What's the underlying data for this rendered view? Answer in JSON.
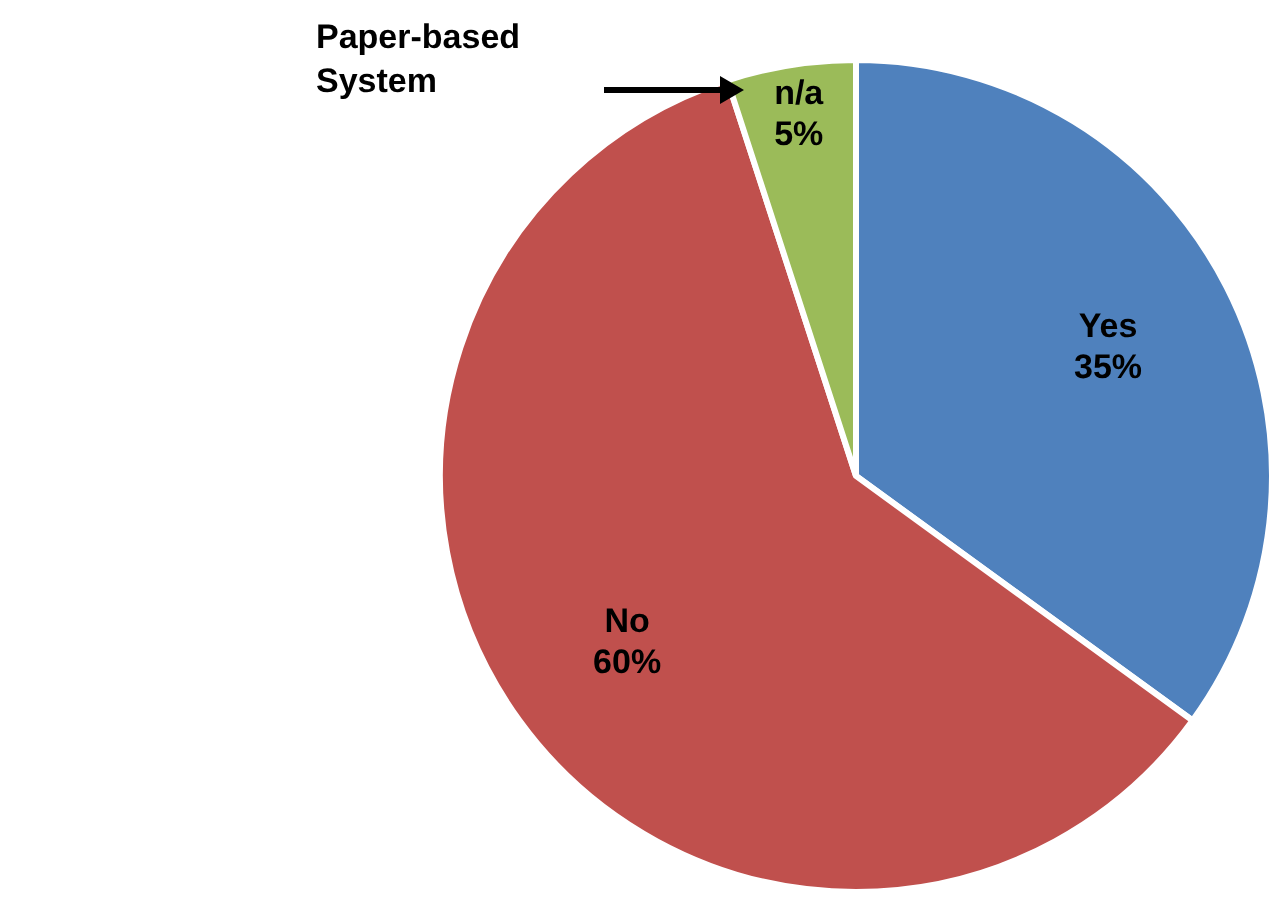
{
  "chart_data": {
    "type": "pie",
    "categories": [
      "Yes",
      "No",
      "n/a"
    ],
    "values": [
      35,
      60,
      5
    ],
    "colors": [
      "#4f81bd",
      "#c0504d",
      "#9bbb59"
    ],
    "value_labels": [
      "35%",
      "60%",
      "5%"
    ],
    "annotations": [
      "Paper-based System"
    ]
  }
}
